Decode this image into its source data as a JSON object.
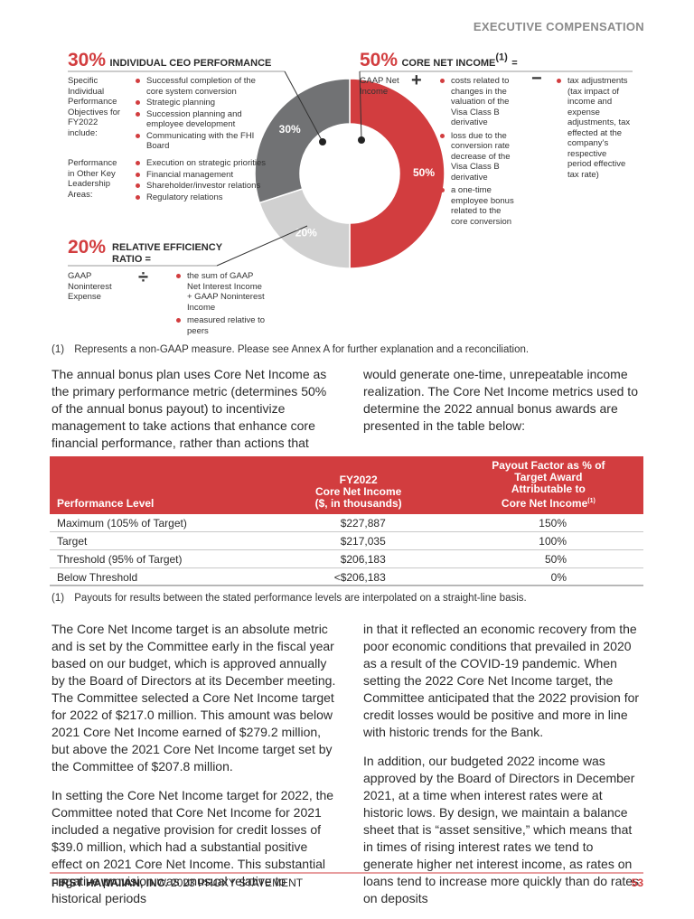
{
  "header": {
    "section": "EXECUTIVE COMPENSATION"
  },
  "chart_data": {
    "type": "pie",
    "donut": true,
    "values": [
      50,
      20,
      30
    ],
    "value_labels": [
      "50%",
      "20%",
      "30%"
    ],
    "colors": [
      "#d23d3f",
      "#d0d0d0",
      "#717274"
    ]
  },
  "ceo": {
    "percent": "30%",
    "title": "INDIVIDUAL CEO PERFORMANCE",
    "groups": [
      {
        "label": "Specific Individual Performance Objectives for FY2022 include:",
        "items": [
          "Successful completion of the core system conversion",
          "Strategic planning",
          "Succession planning and employee development",
          "Communicating with the FHI Board"
        ]
      },
      {
        "label": "Performance in Other Key Leadership Areas:",
        "items": [
          "Execution on strategic priorities",
          "Financial management",
          "Shareholder/investor relations",
          "Regulatory relations"
        ]
      }
    ]
  },
  "core_net_income": {
    "percent": "50%",
    "title": "CORE NET INCOME",
    "note": "(1)",
    "equals": "=",
    "base": "GAAP Net Income",
    "plus": "+",
    "plus_items": [
      "costs related to changes in the valuation of the Visa Class B derivative",
      "loss due to the conversion rate decrease of the Visa Class B derivative",
      "a one-time employee bonus related to the core conversion"
    ],
    "minus": "−",
    "minus_items": [
      "tax adjustments (tax impact of income and expense adjustments, tax effected at the company’s respective period effective tax rate)"
    ]
  },
  "efficiency_ratio": {
    "percent": "20%",
    "title_lines": [
      "RELATIVE EFFICIENCY",
      "RATIO ="
    ],
    "base": "GAAP Noninterest Expense",
    "divide": "÷",
    "items": [
      "the sum of GAAP Net Interest Income + GAAP Noninterest Income",
      "measured relative to peers"
    ]
  },
  "chart_footnote": {
    "marker": "(1)",
    "text": "Represents a non-GAAP measure. Please see Annex A for further explanation and a reconciliation."
  },
  "intro": {
    "columns": [
      "The annual bonus plan uses Core Net Income as the primary performance metric (determines 50% of the annual bonus payout) to incentivize management to take actions that enhance core financial performance, rather than actions that",
      "would generate one-time, unrepeatable income realization. The Core Net Income metrics used to determine the 2022 annual bonus awards are presented in the table below:"
    ]
  },
  "table": {
    "headers": [
      {
        "lines": [
          "Performance Level"
        ]
      },
      {
        "lines": [
          "FY2022",
          "Core Net Income",
          "($, in thousands)"
        ]
      },
      {
        "lines": [
          "Payout Factor as % of",
          "Target Award",
          "Attributable to",
          "Core Net Income"
        ],
        "note": "(1)"
      }
    ],
    "rows": [
      [
        "Maximum (105% of Target)",
        "$227,887",
        "150%"
      ],
      [
        "Target",
        "$217,035",
        "100%"
      ],
      [
        "Threshold (95% of Target)",
        "$206,183",
        "50%"
      ],
      [
        "Below Threshold",
        "<$206,183",
        "0%"
      ]
    ]
  },
  "table_footnote": {
    "marker": "(1)",
    "text": "Payouts for results between the stated performance levels are interpolated on a straight-line basis."
  },
  "body": {
    "columns": [
      [
        "The Core Net Income target is an absolute metric and is set by the Committee early in the fiscal year based on our budget, which is approved annually by the Board of Directors at its December meeting. The Committee selected a Core Net Income target for 2022 of $217.0 million. This amount was below 2021 Core Net Income earned of $279.2 million, but above the 2021 Core Net Income target set by the Committee of $207.8 million.",
        "In setting the Core Net Income target for 2022, the Committee noted that Core Net Income for 2021 included a negative provision for credit losses of $39.0 million, which had a substantial positive effect on 2021 Core Net Income. This substantial negative provision was unusual relative to historical periods"
      ],
      [
        "in that it reflected an economic recovery from the poor economic conditions that prevailed in 2020 as a result of the COVID-19 pandemic. When setting the 2022 Core Net Income target, the Committee anticipated that the 2022 provision for credit losses would be positive and more in line with historic trends for the Bank.",
        "In addition, our budgeted 2022 income was approved by the Board of Directors in December 2021, at a time when interest rates were at historic lows. By design, we maintain a balance sheet that is “asset sensitive,” which means that in times of rising interest rates we tend to generate higher net interest income, as rates on loans tend to increase more quickly than do rates on deposits"
      ]
    ]
  },
  "footer": {
    "company": "FIRST HAWAIIAN, INC.",
    "document": "2023 PROXY STATEMENT",
    "page": "53"
  }
}
